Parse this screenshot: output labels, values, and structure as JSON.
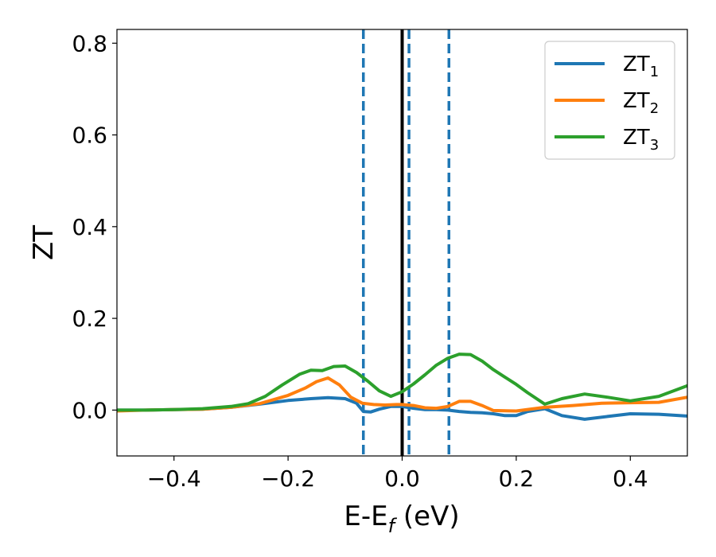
{
  "chart_data": {
    "type": "line",
    "title": "",
    "xlabel": "E-E",
    "xlabel_sub": "f",
    "xlabel_unit": " (eV)",
    "ylabel": "ZT",
    "xlim": [
      -0.5,
      0.5
    ],
    "ylim": [
      -0.1,
      0.83
    ],
    "x_ticks": [
      -0.4,
      -0.2,
      0.0,
      0.2,
      0.4
    ],
    "x_tick_labels": [
      "−0.4",
      "−0.2",
      "0.0",
      "0.2",
      "0.4"
    ],
    "y_ticks": [
      0.0,
      0.2,
      0.4,
      0.6,
      0.8
    ],
    "y_tick_labels": [
      "0.0",
      "0.2",
      "0.4",
      "0.6",
      "0.8"
    ],
    "grid": false,
    "legend_position": "top-right",
    "vertical_lines": [
      {
        "x": -0.068,
        "style": "dashed",
        "color": "#1f77b4"
      },
      {
        "x": 0.012,
        "style": "dashed",
        "color": "#1f77b4"
      },
      {
        "x": 0.082,
        "style": "dashed",
        "color": "#1f77b4"
      },
      {
        "x": 0.0,
        "style": "solid",
        "color": "#000000"
      }
    ],
    "series": [
      {
        "name": "ZT",
        "name_sub": "1",
        "color": "#1f77b4",
        "x": [
          -0.5,
          -0.45,
          -0.4,
          -0.35,
          -0.3,
          -0.25,
          -0.2,
          -0.16,
          -0.13,
          -0.1,
          -0.08,
          -0.068,
          -0.055,
          -0.04,
          -0.02,
          0.0,
          0.02,
          0.04,
          0.06,
          0.08,
          0.1,
          0.12,
          0.14,
          0.16,
          0.18,
          0.2,
          0.22,
          0.25,
          0.28,
          0.32,
          0.36,
          0.4,
          0.45,
          0.5
        ],
        "y": [
          0.0,
          0.0,
          0.001,
          0.002,
          0.006,
          0.013,
          0.021,
          0.025,
          0.027,
          0.025,
          0.015,
          -0.003,
          -0.004,
          0.002,
          0.008,
          0.008,
          0.004,
          0.001,
          0.001,
          0.0,
          -0.003,
          -0.005,
          -0.006,
          -0.008,
          -0.012,
          -0.012,
          -0.003,
          0.003,
          -0.012,
          -0.02,
          -0.014,
          -0.008,
          -0.009,
          -0.013
        ]
      },
      {
        "name": "ZT",
        "name_sub": "2",
        "color": "#ff7f0e",
        "x": [
          -0.5,
          -0.45,
          -0.4,
          -0.35,
          -0.3,
          -0.25,
          -0.2,
          -0.17,
          -0.15,
          -0.13,
          -0.11,
          -0.09,
          -0.07,
          -0.05,
          -0.03,
          -0.01,
          0.0,
          0.02,
          0.04,
          0.06,
          0.08,
          0.1,
          0.12,
          0.14,
          0.16,
          0.2,
          0.25,
          0.3,
          0.35,
          0.4,
          0.45,
          0.5
        ],
        "y": [
          -0.002,
          0.0,
          0.001,
          0.002,
          0.006,
          0.014,
          0.032,
          0.048,
          0.062,
          0.07,
          0.055,
          0.028,
          0.015,
          0.012,
          0.011,
          0.012,
          0.012,
          0.01,
          0.005,
          0.004,
          0.008,
          0.019,
          0.019,
          0.01,
          -0.001,
          -0.002,
          0.006,
          0.01,
          0.015,
          0.016,
          0.017,
          0.028
        ]
      },
      {
        "name": "ZT",
        "name_sub": "3",
        "color": "#2ca02c",
        "x": [
          -0.5,
          -0.45,
          -0.4,
          -0.35,
          -0.3,
          -0.27,
          -0.24,
          -0.21,
          -0.18,
          -0.16,
          -0.14,
          -0.12,
          -0.1,
          -0.08,
          -0.06,
          -0.04,
          -0.02,
          0.0,
          0.02,
          0.04,
          0.06,
          0.08,
          0.1,
          0.12,
          0.14,
          0.16,
          0.18,
          0.2,
          0.22,
          0.25,
          0.28,
          0.32,
          0.36,
          0.4,
          0.45,
          0.5
        ],
        "y": [
          0.0,
          0.0,
          0.001,
          0.003,
          0.008,
          0.014,
          0.03,
          0.055,
          0.078,
          0.087,
          0.086,
          0.095,
          0.096,
          0.082,
          0.063,
          0.042,
          0.03,
          0.04,
          0.057,
          0.077,
          0.098,
          0.113,
          0.122,
          0.121,
          0.107,
          0.088,
          0.072,
          0.056,
          0.038,
          0.013,
          0.025,
          0.035,
          0.028,
          0.02,
          0.03,
          0.053
        ]
      }
    ]
  }
}
